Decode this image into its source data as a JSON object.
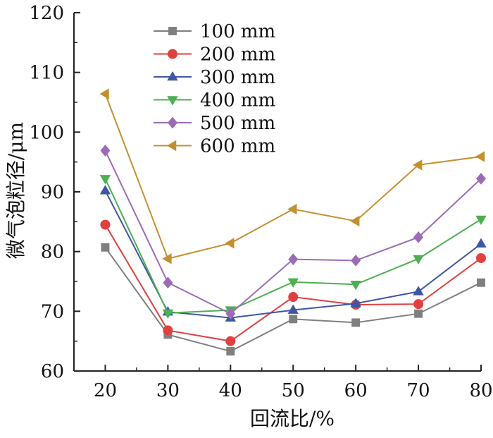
{
  "chart_data": {
    "type": "line",
    "xlabel": "回流比/%",
    "ylabel": "微气泡粒径/μm",
    "xlim": [
      15,
      80
    ],
    "ylim": [
      60,
      120
    ],
    "x": [
      20,
      30,
      40,
      50,
      60,
      70,
      80
    ],
    "x_ticks": [
      "20",
      "30",
      "40",
      "50",
      "60",
      "70",
      "80"
    ],
    "y_ticks": [
      "60",
      "70",
      "80",
      "90",
      "100",
      "110",
      "120"
    ],
    "grid": false,
    "legend_position": "top-left",
    "series": [
      {
        "name": "100 mm",
        "marker": "square",
        "color": "#7f7f7f",
        "values": [
          80.7,
          66.1,
          63.3,
          68.7,
          68.1,
          69.6,
          74.8
        ]
      },
      {
        "name": "200 mm",
        "marker": "circle",
        "color": "#e0403f",
        "values": [
          84.5,
          66.8,
          65.0,
          72.4,
          71.1,
          71.2,
          78.9
        ]
      },
      {
        "name": "300 mm",
        "marker": "triangle-up",
        "color": "#3f56a3",
        "values": [
          90.2,
          69.9,
          68.9,
          70.2,
          71.3,
          73.3,
          81.3
        ]
      },
      {
        "name": "400 mm",
        "marker": "triangle-down",
        "color": "#4caf50",
        "values": [
          92.2,
          69.7,
          70.2,
          74.9,
          74.5,
          78.8,
          85.4
        ]
      },
      {
        "name": "500 mm",
        "marker": "diamond",
        "color": "#9c6bb5",
        "values": [
          96.9,
          74.8,
          69.6,
          78.7,
          78.5,
          82.4,
          92.2
        ]
      },
      {
        "name": "600 mm",
        "marker": "triangle-left",
        "color": "#c4902f",
        "values": [
          106.4,
          78.8,
          81.4,
          87.1,
          85.1,
          94.5,
          95.9
        ]
      }
    ]
  }
}
